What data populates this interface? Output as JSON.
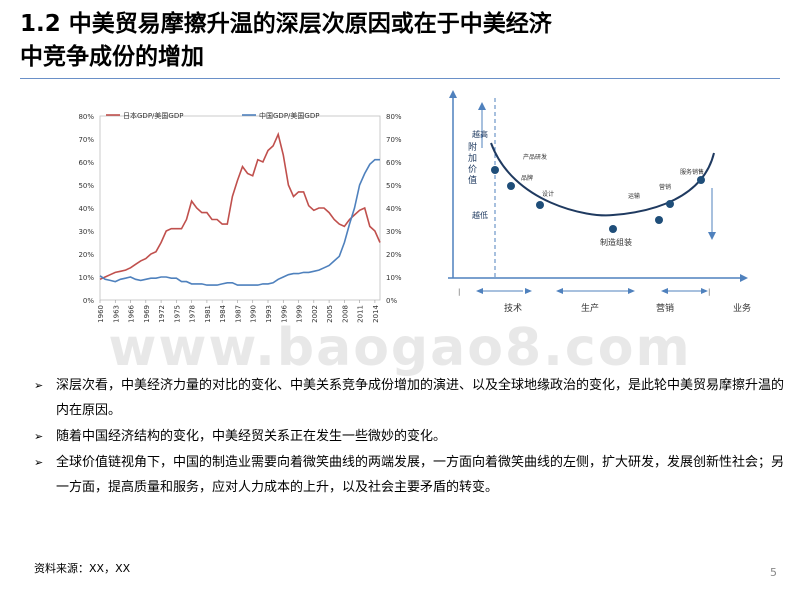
{
  "title": {
    "line1": "1.2 中美贸易摩擦升温的深层次原因或在于中美经济",
    "line2": "中竞争成份的增加"
  },
  "chart_data": {
    "type": "line",
    "legend": [
      "日本GDP/美国GDP",
      "中国GDP/美国GDP"
    ],
    "x_tick_labels": [
      "1960",
      "1963",
      "1966",
      "1969",
      "1972",
      "1975",
      "1978",
      "1981",
      "1984",
      "1987",
      "1990",
      "1993",
      "1996",
      "1999",
      "2002",
      "2005",
      "2008",
      "2011",
      "2014"
    ],
    "left_axis_ticks": [
      "0%",
      "10%",
      "20%",
      "30%",
      "40%",
      "50%",
      "60%",
      "70%",
      "80%"
    ],
    "right_axis_ticks": [
      "0%",
      "10%",
      "20%",
      "30%",
      "40%",
      "50%",
      "60%",
      "70%",
      "80%"
    ],
    "ylim": [
      0,
      80
    ],
    "colors": {
      "japan": "#c0504d",
      "china": "#4f81bd"
    },
    "x": [
      1960,
      1961,
      1962,
      1963,
      1964,
      1965,
      1966,
      1967,
      1968,
      1969,
      1970,
      1971,
      1972,
      1973,
      1974,
      1975,
      1976,
      1977,
      1978,
      1979,
      1980,
      1981,
      1982,
      1983,
      1984,
      1985,
      1986,
      1987,
      1988,
      1989,
      1990,
      1991,
      1992,
      1993,
      1994,
      1995,
      1996,
      1997,
      1998,
      1999,
      2000,
      2001,
      2002,
      2003,
      2004,
      2005,
      2006,
      2007,
      2008,
      2009,
      2010,
      2011,
      2012,
      2013,
      2014,
      2015
    ],
    "series": [
      {
        "name": "日本GDP/美国GDP",
        "values": [
          9,
          10,
          11,
          12,
          12.5,
          13,
          14,
          15.5,
          17,
          18,
          20,
          21,
          25,
          30,
          31,
          31,
          31,
          35,
          43,
          40,
          38,
          38,
          35,
          35,
          33,
          33,
          45,
          52,
          58,
          55,
          54,
          61,
          60,
          65,
          67,
          72,
          63,
          50,
          45,
          47,
          47,
          41,
          39,
          40,
          40,
          38,
          35,
          33,
          32,
          35,
          37,
          39,
          40,
          32,
          30,
          25
        ]
      },
      {
        "name": "中国GDP/美国GDP",
        "values": [
          10.5,
          9,
          8.5,
          8,
          9,
          9.5,
          10,
          9,
          8.5,
          9,
          9.5,
          9.5,
          10,
          10,
          9.5,
          9.5,
          8,
          8,
          7,
          7,
          7,
          6.5,
          6.5,
          6.5,
          7,
          7.5,
          7.5,
          6.5,
          6.5,
          6.5,
          6.5,
          6.5,
          7,
          7,
          7.5,
          9,
          10,
          11,
          11.5,
          11.5,
          12,
          12,
          12.5,
          13,
          14,
          15,
          17,
          19,
          25,
          33,
          40,
          50,
          55,
          59,
          61,
          61
        ]
      }
    ]
  },
  "smile_curve": {
    "y_axis_label": "附加价值",
    "high": "越高",
    "low": "越低",
    "points": [
      "产品研发",
      "品牌",
      "设计",
      "制造组装",
      "运输",
      "营销",
      "服务销售"
    ],
    "stages": [
      "技术",
      "生产",
      "营销",
      "业务"
    ]
  },
  "watermark": "www.baogao8.com",
  "bullets": [
    {
      "mark": "➢",
      "text": "深层次看，中美经济力量的对比的变化、中美关系竞争成份增加的演进、以及全球地缘政治的变化，是此轮中美贸易摩擦升温的内在原因。"
    },
    {
      "mark": "➢",
      "text": "随着中国经济结构的变化，中美经贸关系正在发生一些微妙的变化。"
    },
    {
      "mark": "➢",
      "text": "全球价值链视角下，中国的制造业需要向着微笑曲线的两端发展，一方面向着微笑曲线的左侧，扩大研发，发展创新性社会；另一方面，提高质量和服务，应对人力成本的上升，以及社会主要矛盾的转变。"
    }
  ],
  "source": "资料来源：XX，XX",
  "page_number": "5"
}
